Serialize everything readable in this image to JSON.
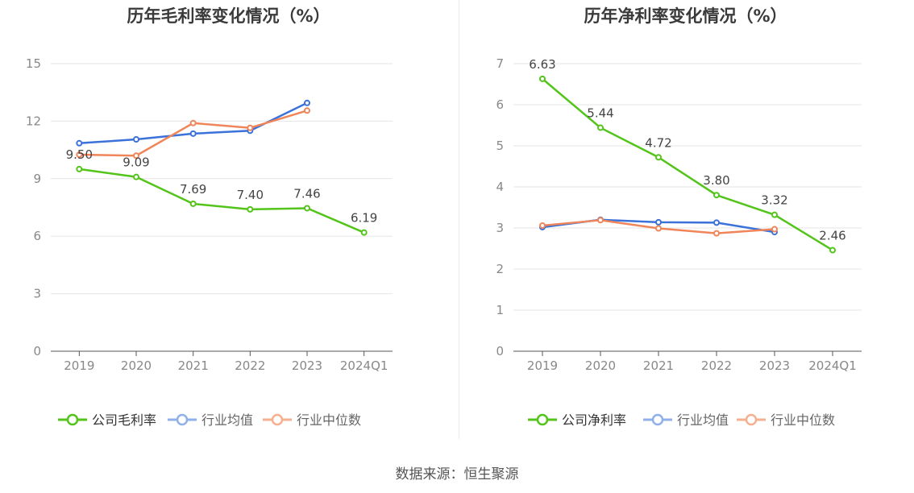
{
  "chart_data": [
    {
      "type": "line",
      "title": "历年毛利率变化情况（%）",
      "categories": [
        "2019",
        "2020",
        "2021",
        "2022",
        "2023",
        "2024Q1"
      ],
      "ylim": [
        0,
        15
      ],
      "yticks": [
        "0",
        "3",
        "6",
        "9",
        "12",
        "15"
      ],
      "grid": true,
      "legend_position": "bottom",
      "series": [
        {
          "name": "公司毛利率",
          "color": "#52c41a",
          "values": [
            9.5,
            9.09,
            7.69,
            7.4,
            7.46,
            6.19
          ],
          "labels": [
            "9.50",
            "9.09",
            "7.69",
            "7.40",
            "7.46",
            "6.19"
          ]
        },
        {
          "name": "行业均值",
          "color": "#3b72d9",
          "values": [
            10.85,
            11.05,
            11.35,
            11.5,
            12.95,
            null
          ]
        },
        {
          "name": "行业中位数",
          "color": "#f0855a",
          "values": [
            10.25,
            10.2,
            11.9,
            11.65,
            12.55,
            null
          ]
        }
      ]
    },
    {
      "type": "line",
      "title": "历年净利率变化情况（%）",
      "categories": [
        "2019",
        "2020",
        "2021",
        "2022",
        "2023",
        "2024Q1"
      ],
      "ylim": [
        0,
        7
      ],
      "yticks": [
        "0",
        "1",
        "2",
        "3",
        "4",
        "5",
        "6",
        "7"
      ],
      "grid": true,
      "legend_position": "bottom",
      "series": [
        {
          "name": "公司净利率",
          "color": "#52c41a",
          "values": [
            6.63,
            5.44,
            4.72,
            3.8,
            3.32,
            2.46
          ],
          "labels": [
            "6.63",
            "5.44",
            "4.72",
            "3.80",
            "3.32",
            "2.46"
          ]
        },
        {
          "name": "行业均值",
          "color": "#3b72d9",
          "values": [
            3.02,
            3.2,
            3.14,
            3.13,
            2.9,
            null
          ]
        },
        {
          "name": "行业中位数",
          "color": "#f0855a",
          "values": [
            3.06,
            3.19,
            2.99,
            2.87,
            2.97,
            null
          ]
        }
      ]
    }
  ],
  "footer": {
    "source": "数据来源：恒生聚源"
  }
}
